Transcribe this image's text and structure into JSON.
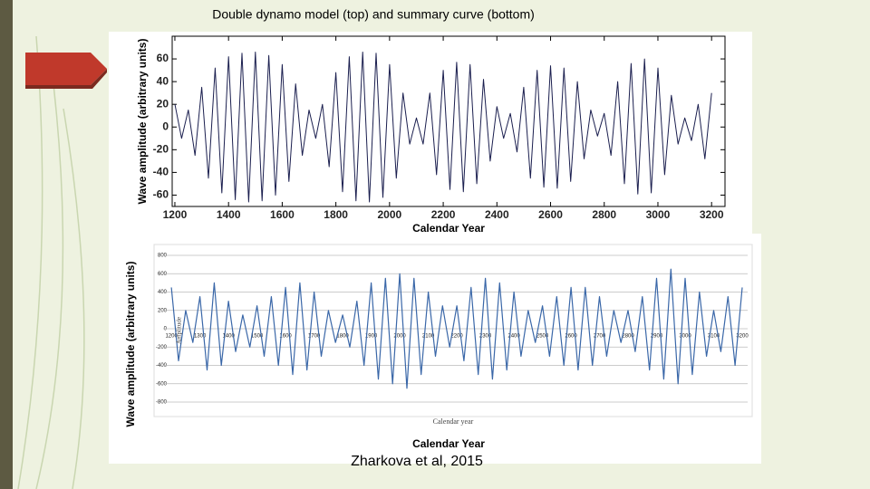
{
  "caption": "Double dynamo model (top) and summary curve (bottom)",
  "credit": "Zharkova et al, 2015",
  "chart_data": [
    {
      "type": "line",
      "x_label": "Calendar Year",
      "y_label": "Wave amplitude (arbitrary units)",
      "xlim": [
        1190,
        3250
      ],
      "ylim": [
        -70,
        80
      ],
      "xticks": [
        1200,
        1400,
        1600,
        1800,
        2000,
        2200,
        2400,
        2600,
        2800,
        3000,
        3200
      ],
      "yticks": [
        -60,
        -40,
        -20,
        0,
        20,
        40,
        60
      ],
      "x": [
        1200,
        1225,
        1250,
        1275,
        1300,
        1325,
        1350,
        1375,
        1400,
        1425,
        1450,
        1475,
        1500,
        1525,
        1550,
        1575,
        1600,
        1625,
        1650,
        1675,
        1700,
        1725,
        1750,
        1775,
        1800,
        1825,
        1850,
        1875,
        1900,
        1925,
        1950,
        1975,
        2000,
        2025,
        2050,
        2075,
        2100,
        2125,
        2150,
        2175,
        2200,
        2225,
        2250,
        2275,
        2300,
        2325,
        2350,
        2375,
        2400,
        2425,
        2450,
        2475,
        2500,
        2525,
        2550,
        2575,
        2600,
        2625,
        2650,
        2675,
        2700,
        2725,
        2750,
        2775,
        2800,
        2825,
        2850,
        2875,
        2900,
        2925,
        2950,
        2975,
        3000,
        3025,
        3050,
        3075,
        3100,
        3125,
        3150,
        3175,
        3200
      ],
      "series": [
        {
          "color": "#1b1f4f",
          "values": [
            20,
            -10,
            15,
            -25,
            35,
            -45,
            52,
            -58,
            62,
            -64,
            65,
            -66,
            66,
            -65,
            63,
            -60,
            55,
            -48,
            38,
            -25,
            15,
            -10,
            20,
            -35,
            48,
            -57,
            62,
            -65,
            66,
            -66,
            65,
            -62,
            55,
            -45,
            30,
            -15,
            8,
            -15,
            30,
            -42,
            50,
            -55,
            57,
            -57,
            55,
            -50,
            42,
            -30,
            18,
            -10,
            12,
            -22,
            35,
            -45,
            50,
            -53,
            54,
            -54,
            52,
            -48,
            40,
            -28,
            15,
            -8,
            12,
            -25,
            40,
            -50,
            56,
            -59,
            60,
            -58,
            52,
            -42,
            28,
            -15,
            8,
            -12,
            20,
            -28,
            30
          ]
        }
      ]
    },
    {
      "type": "line",
      "x_label": "Calendar Year",
      "y_label": "Wave amplitude (arbitrary units)",
      "inner_x_label": "Calendar year",
      "inner_y_label": "Amplitude",
      "xlim": [
        1171,
        3219
      ],
      "ylim": [
        -800,
        800
      ],
      "grid": true,
      "xticks": [
        1200,
        1300,
        1400,
        1500,
        1600,
        1700,
        1800,
        1900,
        2000,
        2100,
        2200,
        2300,
        2400,
        2500,
        2600,
        2700,
        2800,
        2900,
        3000,
        3100,
        3200
      ],
      "yticks": [
        -800,
        -600,
        -400,
        -200,
        0,
        200,
        400,
        600,
        800
      ],
      "x": [
        1200,
        1225,
        1250,
        1275,
        1300,
        1325,
        1350,
        1375,
        1400,
        1425,
        1450,
        1475,
        1500,
        1525,
        1550,
        1575,
        1600,
        1625,
        1650,
        1675,
        1700,
        1725,
        1750,
        1775,
        1800,
        1825,
        1850,
        1875,
        1900,
        1925,
        1950,
        1975,
        2000,
        2025,
        2050,
        2075,
        2100,
        2125,
        2150,
        2175,
        2200,
        2225,
        2250,
        2275,
        2300,
        2325,
        2350,
        2375,
        2400,
        2425,
        2450,
        2475,
        2500,
        2525,
        2550,
        2575,
        2600,
        2625,
        2650,
        2675,
        2700,
        2725,
        2750,
        2775,
        2800,
        2825,
        2850,
        2875,
        2900,
        2925,
        2950,
        2975,
        3000,
        3025,
        3050,
        3075,
        3100,
        3125,
        3150,
        3175,
        3200
      ],
      "series": [
        {
          "color": "#3a67a8",
          "values": [
            450,
            -350,
            200,
            -150,
            350,
            -450,
            500,
            -400,
            300,
            -250,
            150,
            -200,
            250,
            -300,
            350,
            -400,
            450,
            -500,
            500,
            -450,
            400,
            -300,
            200,
            -150,
            150,
            -200,
            300,
            -400,
            500,
            -550,
            550,
            -600,
            600,
            -650,
            550,
            -500,
            400,
            -300,
            250,
            -200,
            250,
            -350,
            450,
            -500,
            550,
            -550,
            500,
            -450,
            400,
            -300,
            200,
            -150,
            250,
            -300,
            350,
            -400,
            450,
            -450,
            450,
            -400,
            350,
            -300,
            200,
            -150,
            200,
            -250,
            350,
            -450,
            550,
            -550,
            650,
            -600,
            550,
            -500,
            400,
            -300,
            200,
            -250,
            350,
            -400,
            450
          ]
        }
      ]
    }
  ]
}
